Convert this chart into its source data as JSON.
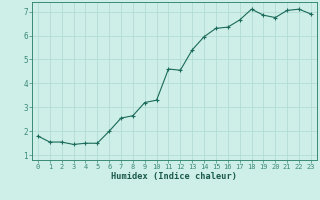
{
  "x": [
    0,
    1,
    2,
    3,
    4,
    5,
    6,
    7,
    8,
    9,
    10,
    11,
    12,
    13,
    14,
    15,
    16,
    17,
    18,
    19,
    20,
    21,
    22,
    23
  ],
  "y": [
    1.8,
    1.55,
    1.55,
    1.45,
    1.5,
    1.5,
    2.0,
    2.55,
    2.65,
    3.2,
    3.3,
    4.6,
    4.55,
    5.4,
    5.95,
    6.3,
    6.35,
    6.65,
    7.1,
    6.85,
    6.75,
    7.05,
    7.1,
    6.9
  ],
  "xlabel": "Humidex (Indice chaleur)",
  "bg_color": "#ceeee8",
  "line_color": "#1a6b5a",
  "marker_color": "#1a6b5a",
  "grid_color": "#aed8d2",
  "axis_color": "#3a8a78",
  "text_color": "#1a5a4a",
  "xlim": [
    -0.5,
    23.5
  ],
  "ylim": [
    0.8,
    7.4
  ],
  "yticks": [
    1,
    2,
    3,
    4,
    5,
    6,
    7
  ],
  "xticks": [
    0,
    1,
    2,
    3,
    4,
    5,
    6,
    7,
    8,
    9,
    10,
    11,
    12,
    13,
    14,
    15,
    16,
    17,
    18,
    19,
    20,
    21,
    22,
    23
  ],
  "tick_fontsize": 5.0,
  "xlabel_fontsize": 6.2,
  "ytick_fontsize": 5.5
}
